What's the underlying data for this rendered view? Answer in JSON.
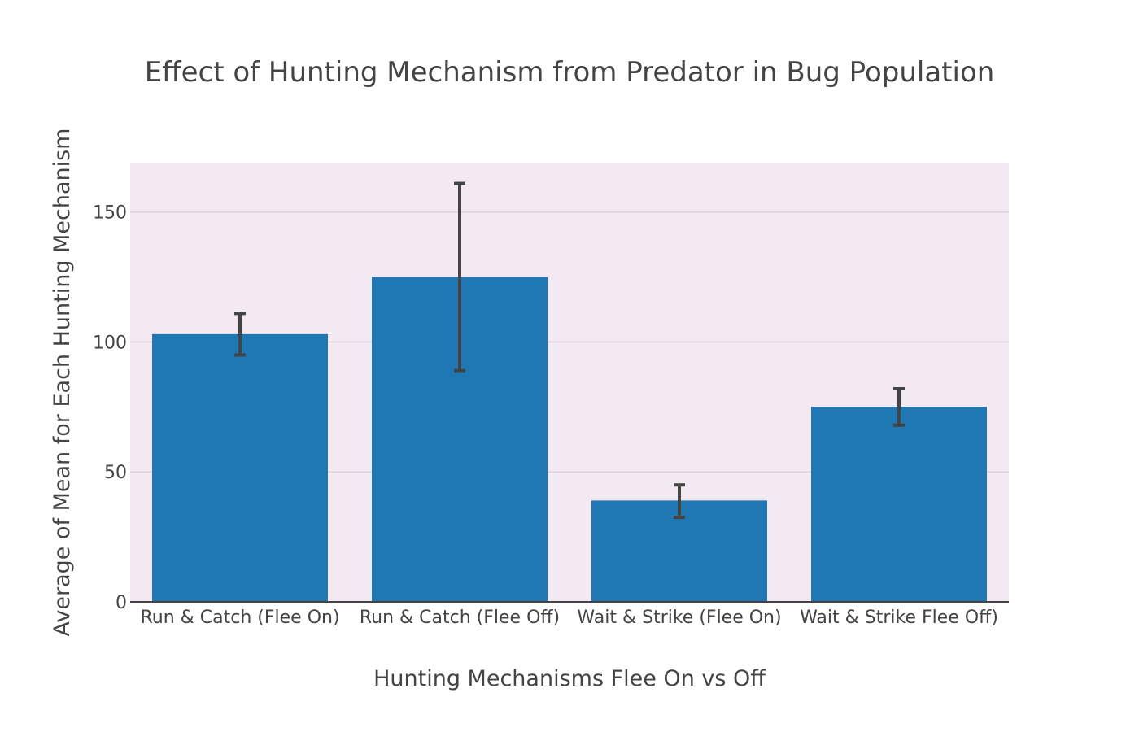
{
  "chart_data": {
    "type": "bar",
    "title": "Effect of Hunting Mechanism from Predator in Bug Population",
    "xlabel": "Hunting Mechanisms Flee On vs Off",
    "ylabel": "Average of Mean for Each Hunting Mechanism",
    "categories": [
      "Run & Catch (Flee On)",
      "Run & Catch (Flee Off)",
      "Wait & Strike (Flee On)",
      "Wait & Strike Flee Off)"
    ],
    "values": [
      103,
      125,
      39,
      75
    ],
    "error_low": [
      95,
      89,
      32.5,
      68
    ],
    "error_high": [
      111,
      161,
      45,
      82
    ],
    "ylim": [
      0,
      169
    ],
    "yticks": [
      0,
      50,
      100,
      150
    ],
    "grid": true,
    "legend": "none"
  },
  "colors": {
    "bar": "#1f77b4",
    "plot_background": "#f2e9f2",
    "gridline": "#dcd1dc",
    "error_bar": "#444444",
    "axis_line": "#444444"
  }
}
